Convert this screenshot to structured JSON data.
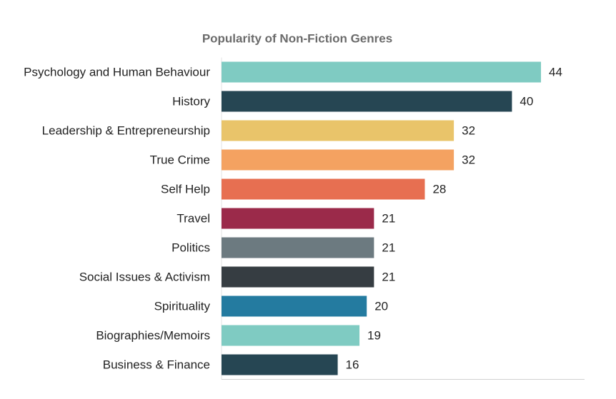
{
  "chart_data": {
    "type": "barh",
    "title": "Popularity of Non-Fiction Genres",
    "categories": [
      "Psychology and Human Behaviour",
      "History",
      "Leadership & Entrepreneurship",
      "True Crime",
      "Self Help",
      "Travel",
      "Politics",
      "Social Issues & Activism",
      "Spirituality",
      "Biographies/Memoirs",
      "Business & Finance"
    ],
    "values": [
      44,
      40,
      32,
      32,
      28,
      21,
      21,
      21,
      20,
      19,
      16
    ],
    "colors": [
      "#7fcbc2",
      "#264653",
      "#e9c46a",
      "#f4a261",
      "#e76f51",
      "#9b2a4a",
      "#6c7a80",
      "#363d42",
      "#247ba0",
      "#7fcbc2",
      "#264653"
    ],
    "xlim": [
      0,
      50
    ]
  }
}
